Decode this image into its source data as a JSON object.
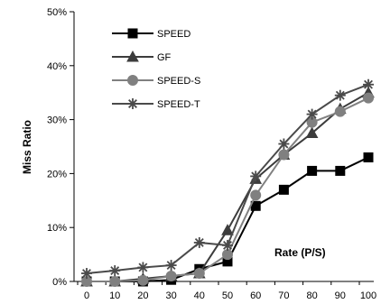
{
  "chart_data": {
    "type": "line",
    "title": "",
    "xlabel": "Rate (P/S)",
    "ylabel": "Miss Ratio",
    "x": [
      0,
      10,
      20,
      30,
      40,
      50,
      60,
      70,
      80,
      90,
      100
    ],
    "x_tick_labels": [
      "0",
      "10",
      "20",
      "30",
      "40",
      "50",
      "60",
      "70",
      "80",
      "90",
      "100"
    ],
    "ylim": [
      0,
      50
    ],
    "y_ticks": [
      0,
      10,
      20,
      30,
      40,
      50
    ],
    "y_tick_labels": [
      "0%",
      "10%",
      "20%",
      "30%",
      "40%",
      "50%"
    ],
    "grid": false,
    "legend_position": "top-left",
    "series": [
      {
        "name": "SPEED",
        "marker": "square",
        "color": "#000000",
        "values": [
          0,
          0,
          0,
          0.3,
          2.3,
          3.7,
          14,
          17,
          20.5,
          20.5,
          23
        ]
      },
      {
        "name": "GF",
        "marker": "triangle",
        "color": "#3c3c3c",
        "values": [
          0,
          0,
          0.5,
          1.0,
          1.5,
          9.5,
          19,
          23.5,
          27.5,
          32,
          35
        ]
      },
      {
        "name": "SPEED-S",
        "marker": "circle",
        "color": "#808080",
        "values": [
          0,
          0,
          0.2,
          1.0,
          1.5,
          5.0,
          16,
          23.5,
          29.5,
          31.5,
          34
        ]
      },
      {
        "name": "SPEED-T",
        "marker": "star",
        "color": "#4a4a4a",
        "values": [
          1.5,
          2.0,
          2.6,
          3.0,
          7.2,
          6.7,
          19.5,
          25.5,
          31,
          34.5,
          36.5
        ]
      }
    ]
  }
}
